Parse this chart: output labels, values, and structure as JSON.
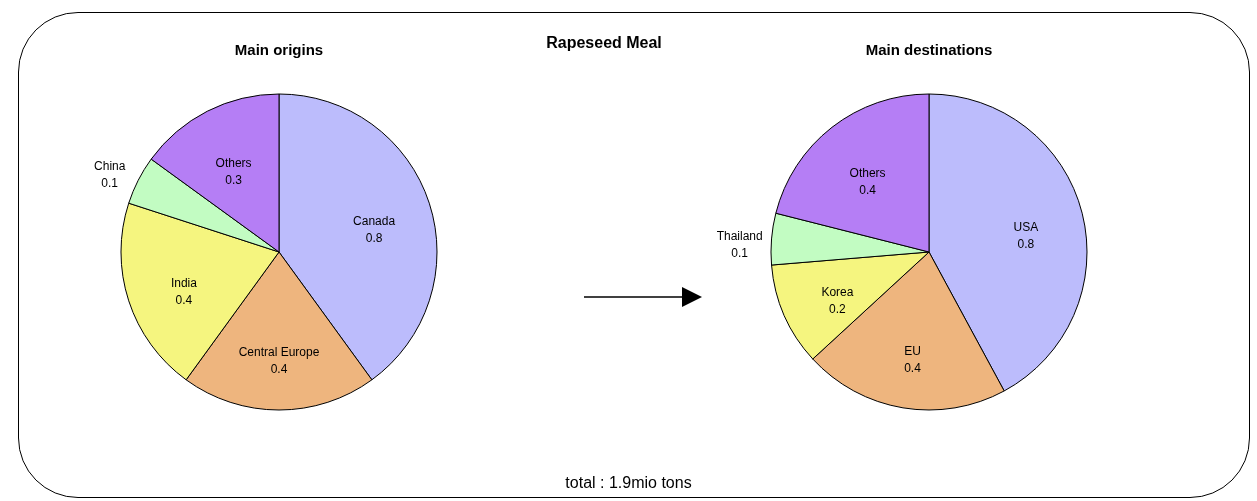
{
  "chart_data": [
    {
      "type": "pie",
      "title": "Main origins",
      "annotations": [
        "Rapeseed  Meal"
      ],
      "categories": [
        "Canada",
        "Central Europe",
        "India",
        "China",
        "Others"
      ],
      "values": [
        0.8,
        0.4,
        0.4,
        0.1,
        0.3
      ],
      "colors": [
        "#bcbcfc",
        "#eeb57e",
        "#f5f57f",
        "#c2fcc2",
        "#b57ef5"
      ],
      "data_labels": true,
      "legend": false
    },
    {
      "type": "pie",
      "title": "Main destinations",
      "annotations": [
        "total : 1.9mio tons"
      ],
      "categories": [
        "USA",
        "EU",
        "Korea",
        "Thailand",
        "Others"
      ],
      "values": [
        0.8,
        0.4,
        0.2,
        0.1,
        0.4
      ],
      "colors": [
        "#bcbcfc",
        "#eeb57e",
        "#f5f57f",
        "#c2fcc2",
        "#b57ef5"
      ],
      "data_labels": true,
      "legend": false
    }
  ]
}
